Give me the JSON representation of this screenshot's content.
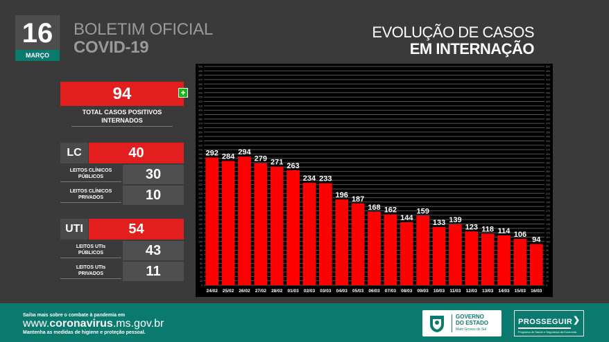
{
  "date": {
    "day": "16",
    "month": "MARÇO"
  },
  "bulletin": {
    "line1": "BOLETIM OFICIAL",
    "line2": "COVID-19"
  },
  "title": {
    "line1": "EVOLUÇÃO DE CASOS",
    "line2": "EM INTERNAÇÃO"
  },
  "total": {
    "value": "94",
    "label_line1": "TOTAL CASOS POSITIVOS",
    "label_line2": "INTERNADOS",
    "plus_symbol": "+"
  },
  "lc": {
    "tag": "LC",
    "value": "40",
    "sub": [
      {
        "label_line1": "LEITOS CLÍNICOS",
        "label_line2": "PÚBLICOS",
        "value": "30"
      },
      {
        "label_line1": "LEITOS CLÍNICOS",
        "label_line2": "PRIVADOS",
        "value": "10"
      }
    ]
  },
  "uti": {
    "tag": "UTI",
    "value": "54",
    "sub": [
      {
        "label_line1": "LEITOS UTIs",
        "label_line2": "PÚBLICOS",
        "value": "43"
      },
      {
        "label_line1": "LEITOS UTIs",
        "label_line2": "PRIVADOS",
        "value": "11"
      }
    ]
  },
  "chart_data": {
    "type": "bar",
    "categories": [
      "24/02",
      "25/02",
      "26/02",
      "27/02",
      "28/02",
      "01/03",
      "02/03",
      "03/03",
      "04/03",
      "05/03",
      "06/03",
      "07/03",
      "08/03",
      "09/03",
      "10/03",
      "11/03",
      "12/03",
      "13/03",
      "14/03",
      "15/03",
      "16/03"
    ],
    "values": [
      292,
      284,
      294,
      279,
      271,
      263,
      234,
      233,
      196,
      187,
      168,
      162,
      144,
      159,
      133,
      139,
      123,
      118,
      114,
      106,
      94
    ],
    "ylim": [
      0,
      500
    ],
    "ytick_step": 10,
    "grid": true,
    "bar_color": "#ff0000",
    "plot_background": "#000000",
    "grid_color": "#555555"
  },
  "footer": {
    "small1": "Saiba mais sobre o combate à pandemia em",
    "url_prefix": "www.",
    "url_bold": "coronavirus",
    "url_suffix": ".ms.gov.br",
    "small2": "Mantenha as medidas de higiene e proteção pessoal.",
    "gov_line1": "GOVERNO",
    "gov_line2": "DO ESTADO",
    "gov_line3": "Mato Grosso do Sul",
    "prosseguir": "PROSSEGUIR",
    "prosseguir_arrow": "❯",
    "prosseguir_sub": "Programa de Saúde e Segurança da Economia"
  },
  "colors": {
    "accent_red": "#e31e1e",
    "brand_green": "#0b7a6e",
    "background": "#3a3a3a"
  }
}
